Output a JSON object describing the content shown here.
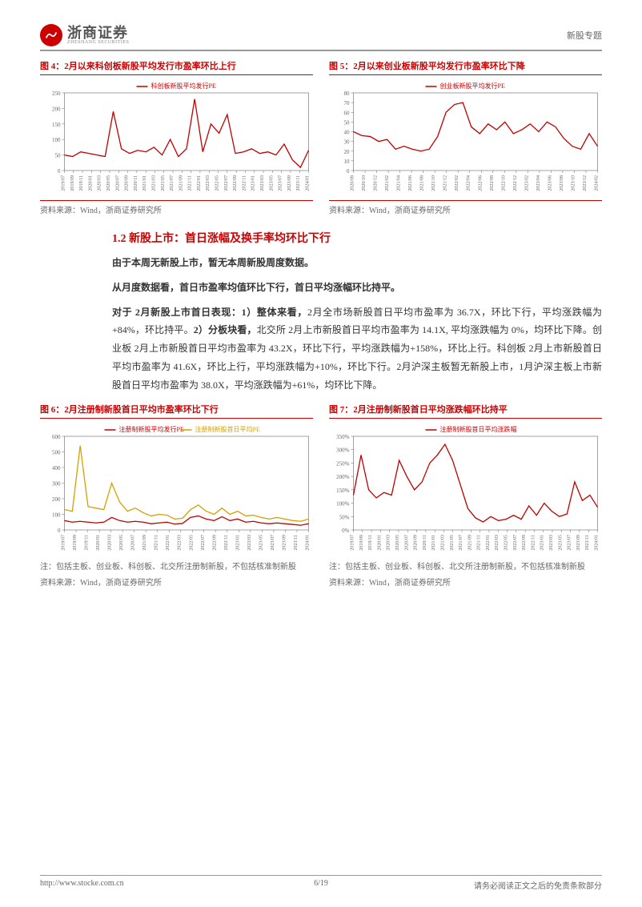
{
  "header": {
    "company_cn": "浙商证券",
    "company_en": "ZHESHANG SECURITIES",
    "topic": "新股专题"
  },
  "chart4": {
    "title": "图 4：2月以来科创板新股平均发行市盈率环比上行",
    "legend": "科创板新股平均发行PE",
    "source": "资料来源：Wind，浙商证券研究所",
    "type": "line",
    "color": "#c00000",
    "ylim": [
      0,
      250
    ],
    "ytick_step": 50,
    "x_labels": [
      "2019/07",
      "2019/09",
      "2019/11",
      "2020/01",
      "2020/03",
      "2020/05",
      "2020/07",
      "2020/09",
      "2020/11",
      "2021/01",
      "2021/03",
      "2021/05",
      "2021/07",
      "2021/09",
      "2021/11",
      "2022/01",
      "2022/03",
      "2022/05",
      "2022/07",
      "2022/09",
      "2022/11",
      "2023/01",
      "2023/03",
      "2023/05",
      "2023/07",
      "2023/09",
      "2023/11",
      "2024/01"
    ],
    "values": [
      50,
      45,
      60,
      55,
      50,
      45,
      190,
      70,
      55,
      65,
      60,
      75,
      50,
      100,
      45,
      70,
      230,
      60,
      150,
      120,
      180,
      55,
      60,
      70,
      55,
      60,
      50,
      85,
      35,
      10,
      65
    ]
  },
  "chart5": {
    "title": "图 5：2月以来创业板新股平均发行市盈率环比下降",
    "legend": "创业板新股平均发行PE",
    "source": "资料来源：Wind，浙商证券研究所",
    "type": "line",
    "color": "#c00000",
    "ylim": [
      0,
      80
    ],
    "ytick_step": 10,
    "x_labels": [
      "2020/08",
      "2020/10",
      "2020/12",
      "2021/02",
      "2021/04",
      "2021/06",
      "2021/08",
      "2021/10",
      "2021/12",
      "2022/02",
      "2022/04",
      "2022/06",
      "2022/08",
      "2022/10",
      "2022/12",
      "2023/02",
      "2023/04",
      "2023/06",
      "2023/08",
      "2023/10",
      "2023/12",
      "2024/02"
    ],
    "values": [
      40,
      36,
      35,
      30,
      32,
      22,
      25,
      22,
      20,
      22,
      35,
      60,
      68,
      70,
      45,
      38,
      48,
      42,
      50,
      38,
      42,
      48,
      40,
      50,
      45,
      33,
      25,
      22,
      38,
      25
    ]
  },
  "section_title": "1.2 新股上市：首日涨幅及换手率均环比下行",
  "paragraphs": [
    {
      "text": "由于本周无新股上市，暂无本周新股周度数据。",
      "bold": true
    },
    {
      "text": "从月度数据看，首日市盈率均值环比下行，首日平均涨幅环比持平。",
      "bold": true
    }
  ],
  "para3_parts": [
    {
      "t": "对于 2月新股上市首日表现：1）整体来看，",
      "b": true
    },
    {
      "t": "2月全市场新股首日平均市盈率为 36.7X，环比下行，平均涨跌幅为+84%，环比持平。",
      "b": false
    },
    {
      "t": "2）分板块看，",
      "b": true
    },
    {
      "t": "北交所 2月上市新股首日平均市盈率为 14.1X, 平均涨跌幅为 0%，均环比下降。创业板 2月上市新股首日平均市盈率为 43.2X，环比下行，平均涨跌幅为+158%，环比上行。科创板 2月上市新股首日平均市盈率为 41.6X，环比上行，平均涨跌幅为+10%，环比下行。2月沪深主板暂无新股上市，1月沪深主板上市新股首日平均市盈率为 38.0X，平均涨跌幅为+61%，均环比下降。",
      "b": false
    }
  ],
  "chart6": {
    "title": "图 6：2月注册制新股首日平均市盈率环比下行",
    "legend1": "注册制新股平均发行PE",
    "legend2": "注册制新股首日平均PE",
    "note": "注：包括主板、创业板、科创板、北交所注册制新股，不包括核准制新股",
    "source": "资料来源：Wind，浙商证券研究所",
    "type": "line",
    "color1": "#c00000",
    "color2": "#d4a000",
    "ylim": [
      0,
      600
    ],
    "ytick_step": 100,
    "x_labels": [
      "2019/07",
      "2019/09",
      "2019/11",
      "2020/01",
      "2020/03",
      "2020/05",
      "2020/07",
      "2021/09",
      "2021/11",
      "2022/01",
      "2022/03",
      "2022/05",
      "2022/07",
      "2022/09",
      "2022/11",
      "2023/01",
      "2023/03",
      "2023/05",
      "2023/07",
      "2023/09",
      "2023/11",
      "2024/01"
    ],
    "values1": [
      60,
      50,
      55,
      50,
      45,
      50,
      80,
      60,
      50,
      55,
      50,
      40,
      45,
      50,
      38,
      42,
      80,
      90,
      70,
      60,
      85,
      60,
      70,
      50,
      55,
      45,
      40,
      45,
      40,
      35,
      30,
      40
    ],
    "values2": [
      130,
      120,
      540,
      150,
      140,
      130,
      300,
      180,
      120,
      140,
      110,
      90,
      100,
      95,
      70,
      75,
      130,
      160,
      120,
      100,
      140,
      100,
      120,
      90,
      95,
      80,
      70,
      80,
      70,
      60,
      55,
      70
    ]
  },
  "chart7": {
    "title": "图 7：2月注册制新股首日平均涨跌幅环比持平",
    "legend": "注册制新股首日平均涨跌幅",
    "note": "注：包括主板、创业板、科创板、北交所注册制新股，不包括核准制新股",
    "source": "资料来源：Wind，浙商证券研究所",
    "type": "line",
    "color": "#c00000",
    "ylim": [
      0,
      350
    ],
    "ytick_step": 50,
    "ylabel_suffix": "%",
    "x_labels": [
      "2019/07",
      "2019/09",
      "2019/11",
      "2020/01",
      "2020/03",
      "2020/05",
      "2020/07",
      "2020/09",
      "2020/11",
      "2021/01",
      "2021/03",
      "2021/05",
      "2021/07",
      "2021/09",
      "2021/11",
      "2022/01",
      "2022/03",
      "2022/05",
      "2022/07",
      "2022/09",
      "2022/11",
      "2023/01",
      "2023/03",
      "2023/05",
      "2023/07",
      "2023/09",
      "2023/11",
      "2024/01"
    ],
    "values": [
      130,
      280,
      150,
      120,
      140,
      130,
      260,
      200,
      150,
      180,
      250,
      280,
      320,
      260,
      170,
      80,
      45,
      30,
      50,
      35,
      40,
      55,
      40,
      90,
      55,
      100,
      70,
      50,
      60,
      180,
      110,
      130,
      85
    ]
  },
  "footer": {
    "url": "http://www.stocke.com.cn",
    "page": "6/19",
    "disclaimer": "请务必阅读正文之后的免责条款部分"
  }
}
